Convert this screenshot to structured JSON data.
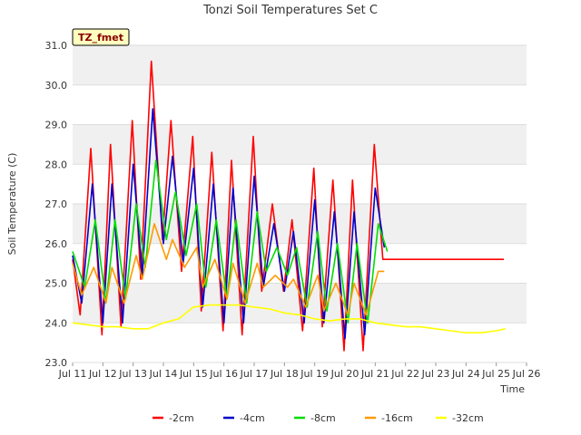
{
  "chart_data": {
    "type": "line",
    "title": "Tonzi Soil Temperatures Set C",
    "xlabel": "Time",
    "ylabel": "Soil Temperature (C)",
    "tag": "TZ_fmet",
    "xlim": [
      11,
      26
    ],
    "ylim": [
      23.0,
      31.0
    ],
    "x_ticks": [
      "Jul 11",
      "Jul 12",
      "Jul 13",
      "Jul 14",
      "Jul 15",
      "Jul 16",
      "Jul 17",
      "Jul 18",
      "Jul 19",
      "Jul 20",
      "Jul 21",
      "Jul 22",
      "Jul 23",
      "Jul 24",
      "Jul 25",
      "Jul 26"
    ],
    "y_ticks": [
      "23.0",
      "24.0",
      "25.0",
      "26.0",
      "27.0",
      "28.0",
      "29.0",
      "30.0",
      "31.0"
    ],
    "grid": true,
    "legend_position": "bottom",
    "series": [
      {
        "name": "-2cm",
        "color": "#ff0000",
        "x": [
          11.0,
          11.25,
          11.6,
          11.97,
          12.25,
          12.6,
          12.97,
          13.25,
          13.6,
          13.97,
          14.25,
          14.6,
          14.97,
          15.25,
          15.6,
          15.97,
          16.25,
          16.6,
          16.97,
          17.25,
          17.6,
          17.97,
          18.25,
          18.6,
          18.97,
          19.25,
          19.6,
          19.97,
          20.25,
          20.6,
          20.97,
          21.25,
          21.6,
          21.97,
          22.25,
          22.6,
          22.97,
          23.25,
          23.6,
          23.97,
          24.25,
          24.6,
          24.97,
          25.25
        ],
        "y": [
          25.6,
          24.2,
          28.4,
          23.7,
          28.5,
          23.9,
          29.1,
          25.1,
          30.6,
          26.1,
          29.1,
          25.3,
          28.7,
          24.3,
          28.3,
          23.8,
          28.1,
          23.7,
          28.7,
          24.8,
          27.0,
          24.8,
          26.6,
          23.8,
          27.9,
          23.9,
          27.6,
          23.3,
          27.6,
          23.3,
          28.5,
          25.6,
          25.6,
          25.6,
          25.6,
          25.6,
          25.6,
          25.6,
          25.6,
          25.6,
          25.6,
          25.6,
          25.6,
          25.6
        ]
      },
      {
        "name": "-4cm",
        "color": "#0000cc",
        "x": [
          11.0,
          11.3,
          11.65,
          12.0,
          12.3,
          12.65,
          13.0,
          13.3,
          13.65,
          14.0,
          14.3,
          14.65,
          15.0,
          15.3,
          15.65,
          16.0,
          16.3,
          16.65,
          17.0,
          17.3,
          17.65,
          18.0,
          18.3,
          18.65,
          19.0,
          19.3,
          19.65,
          20.0,
          20.3,
          20.65,
          21.0,
          21.3
        ],
        "y": [
          25.7,
          24.5,
          27.5,
          24.0,
          27.5,
          24.0,
          28.0,
          25.2,
          29.4,
          26.0,
          28.2,
          25.5,
          27.9,
          24.4,
          27.5,
          24.0,
          27.4,
          24.0,
          27.7,
          24.9,
          26.5,
          24.8,
          26.3,
          24.0,
          27.1,
          24.0,
          26.8,
          23.6,
          26.8,
          23.7,
          27.4,
          25.9
        ]
      },
      {
        "name": "-8cm",
        "color": "#00dd00",
        "x": [
          11.0,
          11.4,
          11.75,
          12.1,
          12.4,
          12.75,
          13.1,
          13.4,
          13.75,
          14.1,
          14.4,
          14.75,
          15.1,
          15.4,
          15.75,
          16.1,
          16.4,
          16.75,
          17.1,
          17.4,
          17.75,
          18.1,
          18.4,
          18.75,
          19.1,
          19.4,
          19.75,
          20.1,
          20.4,
          20.75,
          21.1,
          21.4
        ],
        "y": [
          25.8,
          24.9,
          26.6,
          24.5,
          26.6,
          24.6,
          27.0,
          25.4,
          28.1,
          26.1,
          27.3,
          25.7,
          27.0,
          24.9,
          26.6,
          24.6,
          26.6,
          24.5,
          26.8,
          25.3,
          25.9,
          25.2,
          25.9,
          24.4,
          26.3,
          24.3,
          26.0,
          24.0,
          26.0,
          24.0,
          26.5,
          25.8
        ]
      },
      {
        "name": "-16cm",
        "color": "#ff9900",
        "x": [
          11.0,
          11.3,
          11.7,
          12.1,
          12.3,
          12.7,
          13.1,
          13.3,
          13.7,
          14.1,
          14.3,
          14.7,
          15.1,
          15.3,
          15.7,
          16.1,
          16.3,
          16.7,
          17.1,
          17.3,
          17.7,
          18.1,
          18.3,
          18.7,
          19.1,
          19.3,
          19.7,
          20.1,
          20.3,
          20.7,
          21.1,
          21.3
        ],
        "y": [
          25.5,
          24.7,
          25.4,
          24.5,
          25.4,
          24.5,
          25.7,
          25.1,
          26.5,
          25.6,
          26.1,
          25.4,
          25.9,
          24.9,
          25.6,
          24.6,
          25.5,
          24.5,
          25.5,
          24.9,
          25.2,
          24.9,
          25.1,
          24.4,
          25.2,
          24.3,
          25.0,
          24.2,
          25.0,
          24.2,
          25.3,
          25.3
        ]
      },
      {
        "name": "-32cm",
        "color": "#ffff00",
        "x": [
          11.0,
          11.5,
          12.0,
          12.5,
          13.0,
          13.5,
          14.0,
          14.5,
          15.0,
          15.5,
          16.0,
          16.5,
          17.0,
          17.5,
          18.0,
          18.5,
          19.0,
          19.5,
          20.0,
          20.5,
          21.0,
          21.5,
          22.0,
          22.5,
          23.0,
          23.5,
          24.0,
          24.5,
          25.0,
          25.3
        ],
        "y": [
          24.0,
          23.95,
          23.9,
          23.9,
          23.85,
          23.85,
          24.0,
          24.1,
          24.4,
          24.45,
          24.45,
          24.45,
          24.4,
          24.35,
          24.25,
          24.2,
          24.1,
          24.05,
          24.1,
          24.1,
          24.0,
          23.95,
          23.9,
          23.9,
          23.85,
          23.8,
          23.75,
          23.75,
          23.8,
          23.85
        ]
      }
    ]
  }
}
